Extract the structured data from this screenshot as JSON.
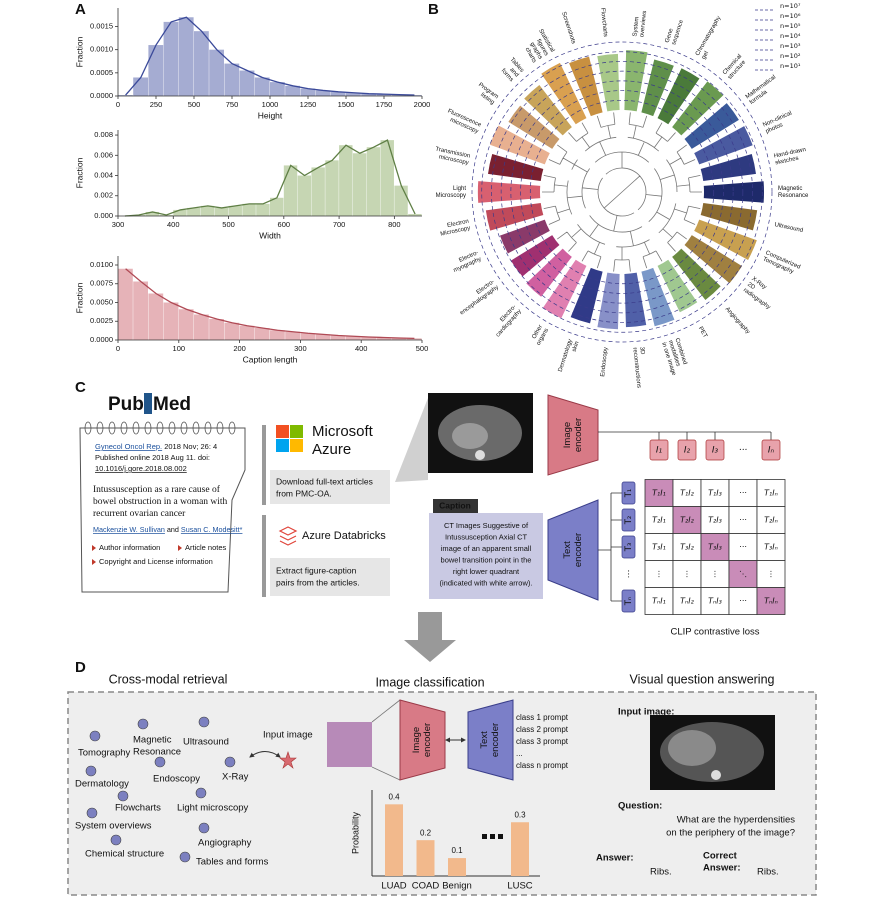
{
  "panel_a": {
    "label": "A",
    "charts": [
      {
        "type": "histogram",
        "xlabel": "Height",
        "ylabel": "Fraction",
        "color": "#8f97c7",
        "line_color": "#3b4a9a",
        "bins": [
          0,
          100,
          200,
          300,
          400,
          500,
          600,
          700,
          800,
          900,
          1000,
          1100,
          1200,
          1300,
          1400,
          1500,
          1600,
          1700,
          1800,
          1900,
          2000
        ],
        "values": [
          2e-05,
          0.0004,
          0.0011,
          0.0016,
          0.0017,
          0.0014,
          0.001,
          0.0007,
          0.00055,
          0.0004,
          0.0003,
          0.00022,
          0.00016,
          0.00012,
          9e-05,
          7e-05,
          5e-05,
          4e-05,
          3e-05,
          2e-05
        ],
        "xlim": [
          0,
          2000
        ],
        "xticks": [
          0,
          250,
          500,
          750,
          1000,
          1250,
          1500,
          1750,
          2000
        ],
        "ylim": [
          0,
          0.0019
        ],
        "yticks": [
          {
            "value": 0,
            "label": "0.0000"
          },
          0.0005,
          {
            "value": 0.001,
            "label": "0.0010"
          },
          0.0015
        ]
      },
      {
        "type": "histogram",
        "xlabel": "Width",
        "ylabel": "Fraction",
        "color": "#b8cca0",
        "line_color": "#5f7f45",
        "bins": [
          300,
          325,
          350,
          375,
          400,
          425,
          450,
          475,
          500,
          525,
          550,
          575,
          600,
          625,
          650,
          675,
          700,
          725,
          750,
          775,
          800,
          825,
          850
        ],
        "values": [
          0,
          0.0001,
          0.0004,
          0.0001,
          0.0006,
          0.0008,
          0.001,
          0.0008,
          0.001,
          0.0012,
          0.0012,
          0.0018,
          0.005,
          0.004,
          0.0048,
          0.0055,
          0.007,
          0.0062,
          0.0068,
          0.0075,
          0.003,
          0.0002
        ],
        "xlim": [
          300,
          850
        ],
        "xticks": [
          300,
          400,
          500,
          600,
          700,
          800
        ],
        "ylim": [
          0,
          0.0085
        ],
        "yticks": [
          {
            "value": 0,
            "label": "0.000"
          },
          0.002,
          0.004,
          0.006,
          0.008
        ]
      },
      {
        "type": "histogram",
        "xlabel": "Caption length",
        "ylabel": "Fraction",
        "color": "#e0a0a6",
        "line_color": "#b04a55",
        "bins": [
          0,
          25,
          50,
          75,
          100,
          125,
          150,
          175,
          200,
          225,
          250,
          275,
          300,
          325,
          350,
          375,
          400,
          425,
          450,
          475,
          500
        ],
        "values": [
          0.0095,
          0.0078,
          0.0062,
          0.005,
          0.0041,
          0.0034,
          0.0028,
          0.0023,
          0.0019,
          0.0016,
          0.0013,
          0.0011,
          0.0009,
          0.00075,
          0.0006,
          0.0005,
          0.0004,
          0.00033,
          0.00027,
          0.00022
        ],
        "xlim": [
          0,
          500
        ],
        "xticks": [
          0,
          100,
          200,
          300,
          400,
          500
        ],
        "ylim": [
          0,
          0.0112
        ],
        "yticks": [
          {
            "value": 0,
            "label": "0.0000"
          },
          0.0025,
          {
            "value": 0.005,
            "label": "0.0050"
          },
          0.0075,
          {
            "value": 0.01,
            "label": "0.0100"
          }
        ]
      }
    ]
  },
  "panel_b": {
    "label": "B",
    "chart": {
      "type": "radial_bar",
      "log_scale": true,
      "rlim": [
        1,
        10000000
      ],
      "rticks": [
        {
          "value": 10,
          "label": "n=10¹"
        },
        {
          "value": 100,
          "label": "n=10²"
        },
        {
          "value": 1000,
          "label": "n=10³"
        },
        {
          "value": 10000,
          "label": "n=10⁴"
        },
        {
          "value": 100000,
          "label": "n=10⁵"
        },
        {
          "value": 1000000,
          "label": "n=10⁶"
        },
        {
          "value": 10000000,
          "label": "n=10⁷"
        }
      ],
      "categories": [
        [
          "Tables",
          "and",
          "forms"
        ],
        [
          "Statistical",
          "figures",
          "graphs",
          "charts"
        ],
        [
          "Screenshots"
        ],
        [
          "Flowcharts"
        ],
        [
          "System",
          "overviews"
        ],
        [
          "Gene",
          "sequence"
        ],
        [
          "Chromatography",
          "gel"
        ],
        [
          "Chemical",
          "structure"
        ],
        [
          "Mathematical",
          "formula"
        ],
        [
          "Non-clinical",
          "photos"
        ],
        [
          "Hand-drawn",
          "sketches"
        ],
        [
          "Magnetic",
          "Resonance"
        ],
        [
          "Ultrasound"
        ],
        [
          "Computerized",
          "Tomography"
        ],
        [
          "X-Ray",
          "2D",
          "radiography"
        ],
        [
          "Angiography"
        ],
        [
          "PET"
        ],
        [
          "Combined",
          "modalities",
          "in one image"
        ],
        [
          "3D",
          "reconstructions"
        ],
        [
          "Endoscopy"
        ],
        [
          "Dermatology",
          "skin"
        ],
        [
          "Other",
          "organs"
        ],
        [
          "Electro-",
          "cardiography"
        ],
        [
          "Electro-",
          "encephalography"
        ],
        [
          "Electro-",
          "myography"
        ],
        [
          "Electron",
          "Microscopy"
        ],
        [
          "Light",
          "Microscopy"
        ],
        [
          "Transmission",
          "microscopy"
        ],
        [
          "Fluorescence",
          "microscopy"
        ],
        [
          "Program",
          "listing"
        ]
      ],
      "values": [
        300000,
        2000000,
        800000,
        600000,
        1500000,
        400000,
        500000,
        900000,
        500000,
        700000,
        300000,
        1500000,
        400000,
        2000000,
        1200000,
        400000,
        200000,
        600000,
        300000,
        500000,
        300000,
        1000000,
        150000,
        100000,
        80000,
        500000,
        2500000,
        300000,
        1000000,
        200000
      ],
      "colors": [
        "#c8a45a",
        "#d9a050",
        "#c89040",
        "#a8c888",
        "#8ab56e",
        "#5f8f4a",
        "#4a7a3a",
        "#6a9a50",
        "#3a5a9a",
        "#4a5aa0",
        "#2e3a80",
        "#1e2a6a",
        "#8a6a30",
        "#c8a050",
        "#a08040",
        "#6a8a40",
        "#a0c890",
        "#7a98c8",
        "#5060a8",
        "#8890c8",
        "#303a88",
        "#e080b0",
        "#d060a0",
        "#a03070",
        "#8a3a6a",
        "#c04a5a",
        "#d86070",
        "#7a2030",
        "#e8b090",
        "#c89a6a"
      ]
    }
  },
  "panel_c": {
    "label": "C",
    "pubmed": {
      "pub": "Pub",
      "med": "Med"
    },
    "article": {
      "journal": "Gynecol Oncol Rep.",
      "issue": " 2018 Nov; 26: 4",
      "published": "Published online 2018 Aug 11. doi:",
      "doi": "10.1016/j.gore.2018.08.002",
      "title": [
        "Intussusception as a rare cause of",
        "bowel obstruction in a woman with",
        "recurrent ovarian cancer"
      ],
      "author_1": "Mackenzie W. Sullivan",
      "and": " and ",
      "author_2": "Susan C. Modesitt*",
      "links": [
        "Author information",
        "Article notes",
        "Copyright and License information"
      ]
    },
    "azure": {
      "brand": [
        "Microsoft",
        "Azure"
      ],
      "step": [
        "Download full-text articles",
        "from PMC-OA."
      ]
    },
    "databricks": {
      "brand": "Azure Databricks",
      "step": [
        "Extract figure-caption",
        "pairs from the articles."
      ]
    },
    "image_encoder": [
      "Image",
      "encoder"
    ],
    "image_tokens": [
      "I₁",
      "I₂",
      "I₃",
      "···",
      "Iₙ"
    ],
    "caption_tag": "Caption",
    "caption": [
      "CT Images Suggestive of",
      "Intussusception Axial CT",
      "image of an apparent small",
      "bowel transition point in the",
      "right lower quadrant",
      "(indicated with white arrow)."
    ],
    "text_encoder": [
      "Text",
      "encoder"
    ],
    "text_tokens": [
      "T₁",
      "T₂",
      "T₃",
      "⋮",
      "Tₙ"
    ],
    "matrix": [
      [
        "T₁I₁",
        "T₁I₂",
        "T₁I₃",
        "···",
        "T₁Iₙ"
      ],
      [
        "T₂I₁",
        "T₂I₂",
        "T₂I₃",
        "···",
        "T₂Iₙ"
      ],
      [
        "T₃I₁",
        "T₃I₂",
        "T₃I₃",
        "···",
        "T₃Iₙ"
      ],
      [
        "⋮",
        "⋮",
        "⋮",
        "⋱",
        "⋮"
      ],
      [
        "TₙI₁",
        "TₙI₂",
        "TₙI₃",
        "···",
        "TₙIₙ"
      ]
    ],
    "loss": "CLIP contrastive loss"
  },
  "panel_d": {
    "label": "D",
    "retrieval": {
      "title": "Cross-modal retrieval",
      "input": "Input image",
      "nodes": [
        [
          "Magnetic",
          "Resonance"
        ],
        [
          "Ultrasound"
        ],
        [
          "Tomography"
        ],
        [
          "Dermatology"
        ],
        [
          "Endoscopy"
        ],
        [
          "X-Ray"
        ],
        [
          "Flowcharts"
        ],
        [
          "Light microscopy"
        ],
        [
          "System overviews"
        ],
        [
          "Angiography"
        ],
        [
          "Chemical structure"
        ],
        [
          "Tables and forms"
        ]
      ]
    },
    "classification": {
      "title": "Image classification",
      "image_encoder": [
        "Image",
        "encoder"
      ],
      "text_encoder": [
        "Text",
        "encoder"
      ],
      "prompts": [
        "class 1 prompt",
        "class 2 prompt",
        "class 3 prompt",
        "...",
        "class n prompt"
      ],
      "chart": {
        "type": "bar",
        "ylabel": "Probability",
        "categories": [
          "LUAD",
          "COAD",
          "Benign",
          "LUSC"
        ],
        "values": [
          0.4,
          0.2,
          0.1,
          0.3
        ],
        "color": "#f2b98c",
        "ylim": [
          0,
          0.48
        ]
      }
    },
    "vqa": {
      "title": "Visual question answering",
      "input": "Input image:",
      "question_label": "Question:",
      "question": [
        "What are the hyperdensities",
        "on the periphery of the image?"
      ],
      "answer_label": "Answer:",
      "answer": "Ribs.",
      "correct_label": [
        "Correct",
        "Answer:"
      ],
      "correct": "Ribs."
    }
  }
}
